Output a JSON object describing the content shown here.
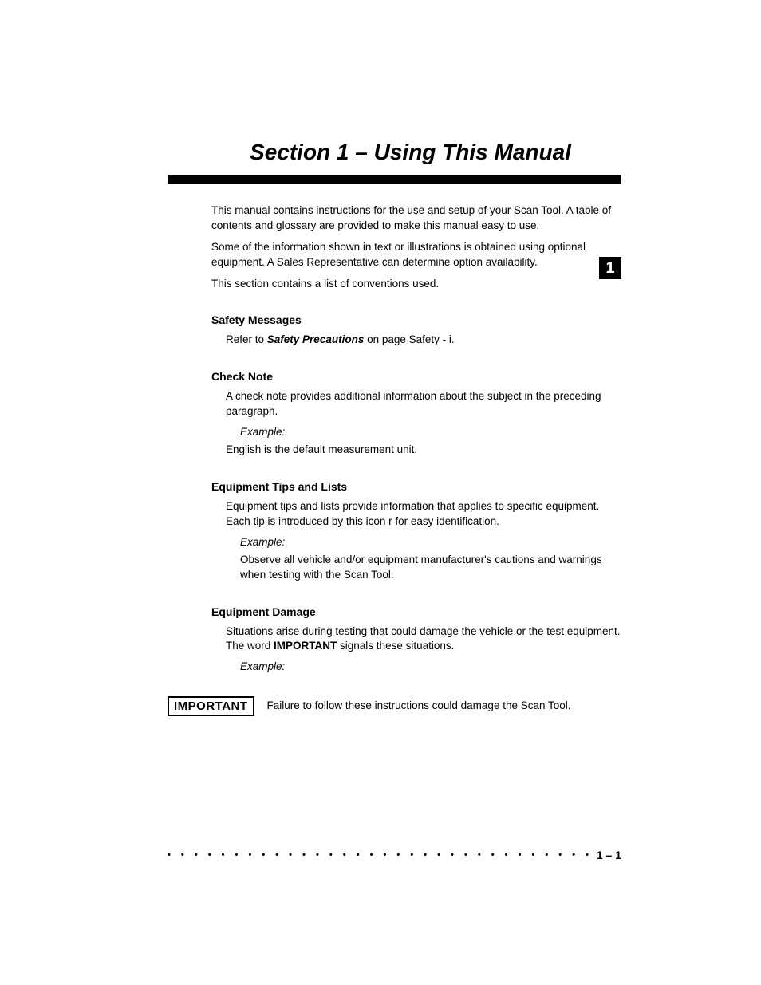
{
  "title": "Section 1 – Using This Manual",
  "sideTab": "1",
  "intro": {
    "p1": "This manual contains instructions for the use and setup of your Scan Tool.  A table of contents and glossary are provided to make this manual easy to use.",
    "p2": "Some of the information shown in text or illustrations is obtained using optional equipment. A Sales Representative can determine option availability.",
    "p3": "This section contains a list of conventions used."
  },
  "safetyMessages": {
    "heading": "Safety Messages",
    "textPrefix": "Refer to ",
    "boldItalic": "Safety Precautions",
    "textSuffix": " on page Safety - i."
  },
  "checkNote": {
    "heading": "Check Note",
    "p1": "A check note provides additional information about the subject in the preceding paragraph.",
    "exampleLabel": "Example:",
    "exampleText": "English is the default measurement unit."
  },
  "equipmentTips": {
    "heading": "Equipment Tips and Lists",
    "p1": "Equipment tips and lists provide information that applies to specific equipment. Each tip is introduced by this icon r for easy identification.",
    "exampleLabel": "Example:",
    "exampleText": "Observe all vehicle and/or equipment manufacturer's cautions and warnings when testing with the Scan Tool."
  },
  "equipmentDamage": {
    "heading": "Equipment Damage",
    "p1a": "Situations arise during testing that could damage the vehicle or the test equipment. The word ",
    "p1bold": "IMPORTANT",
    "p1b": " signals these situations.",
    "exampleLabel": "Example:"
  },
  "importantBox": {
    "label": "IMPORTANT",
    "text": "Failure to follow these instructions could damage the Scan Tool."
  },
  "footer": {
    "dots": "• • • • • • • • • • • • • • • • • • • • • • • • • • • • • • • • • • • • • • • • • • • • • • • • • • • • • • • • • •",
    "pageNum": "1 – 1"
  },
  "colors": {
    "text": "#000000",
    "background": "#ffffff",
    "bar": "#000000"
  }
}
